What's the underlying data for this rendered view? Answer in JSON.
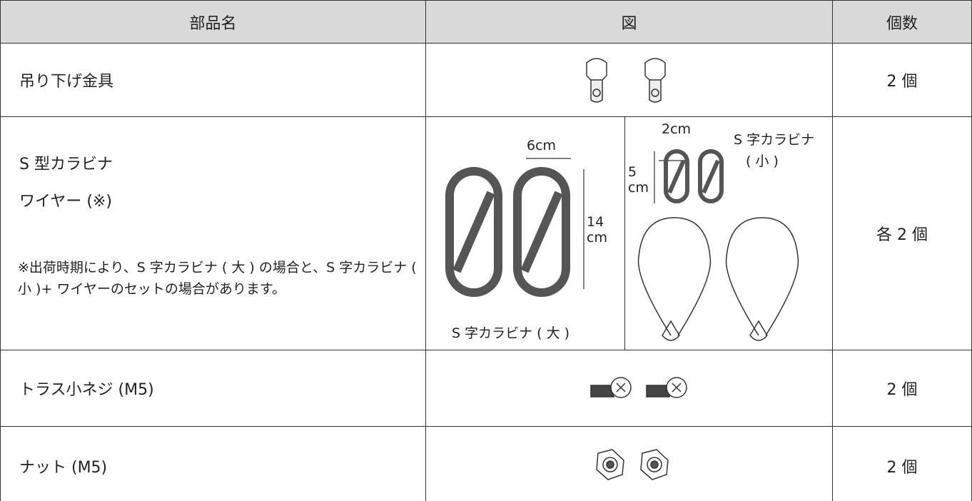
{
  "table": {
    "header": [
      "部品名",
      "図",
      "個数"
    ],
    "rows": [
      {
        "name": "吊り下げ金具",
        "count": "2 個"
      },
      {
        "name_lines": [
          "S 型カラビナ",
          "ワイヤー (※)"
        ],
        "note": "※出荷時期により、S 字カラビナ ( 大 ) の場合と、S 字カラビナ ( 小 )+ ワイヤーのセットの場合があります。",
        "count": "各 2 個",
        "figure": {
          "large": {
            "width": "6cm",
            "height_lines": [
              "14",
              "cm"
            ],
            "caption": "S 字カラビナ ( 大 )"
          },
          "small": {
            "width": "2cm",
            "height_lines": [
              "5",
              "cm"
            ],
            "caption_lines": [
              "S 字カラビナ",
              "( 小 )"
            ]
          }
        }
      },
      {
        "name": "トラス小ネジ (M5)",
        "count": "2 個"
      },
      {
        "name": "ナット (M5)",
        "count": "2 個"
      }
    ]
  }
}
